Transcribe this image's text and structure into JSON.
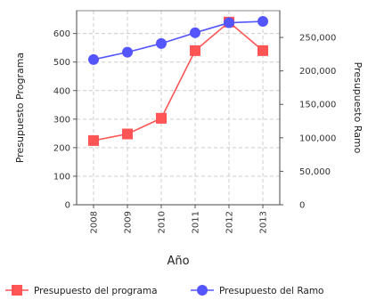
{
  "chart_data": {
    "type": "line",
    "x": [
      "2008",
      "2009",
      "2010",
      "2011",
      "2012",
      "2013"
    ],
    "xlabel": "Año",
    "y_left_label": "Presupuesto Programa",
    "y_right_label": "Presupuesto Ramo",
    "y_left_lim": [
      0,
      680
    ],
    "y_right_lim": [
      0,
      290000
    ],
    "y_left_ticks": [
      "0",
      "100",
      "200",
      "300",
      "400",
      "500",
      "600"
    ],
    "y_right_ticks": [
      "0",
      "50,000",
      "100,000",
      "150,000",
      "200,000",
      "250,000"
    ],
    "grid": true,
    "legend_position": "bottom",
    "series": [
      {
        "name": "Presupuesto del programa",
        "axis": "left",
        "marker": "square",
        "color": "#ff5555",
        "values": [
          225,
          248,
          303,
          540,
          640,
          540
        ]
      },
      {
        "name": "Presupuesto del Ramo",
        "axis": "right",
        "marker": "circle",
        "color": "#5555ff",
        "values": [
          217000,
          228000,
          241000,
          257000,
          272000,
          274000
        ]
      }
    ]
  }
}
